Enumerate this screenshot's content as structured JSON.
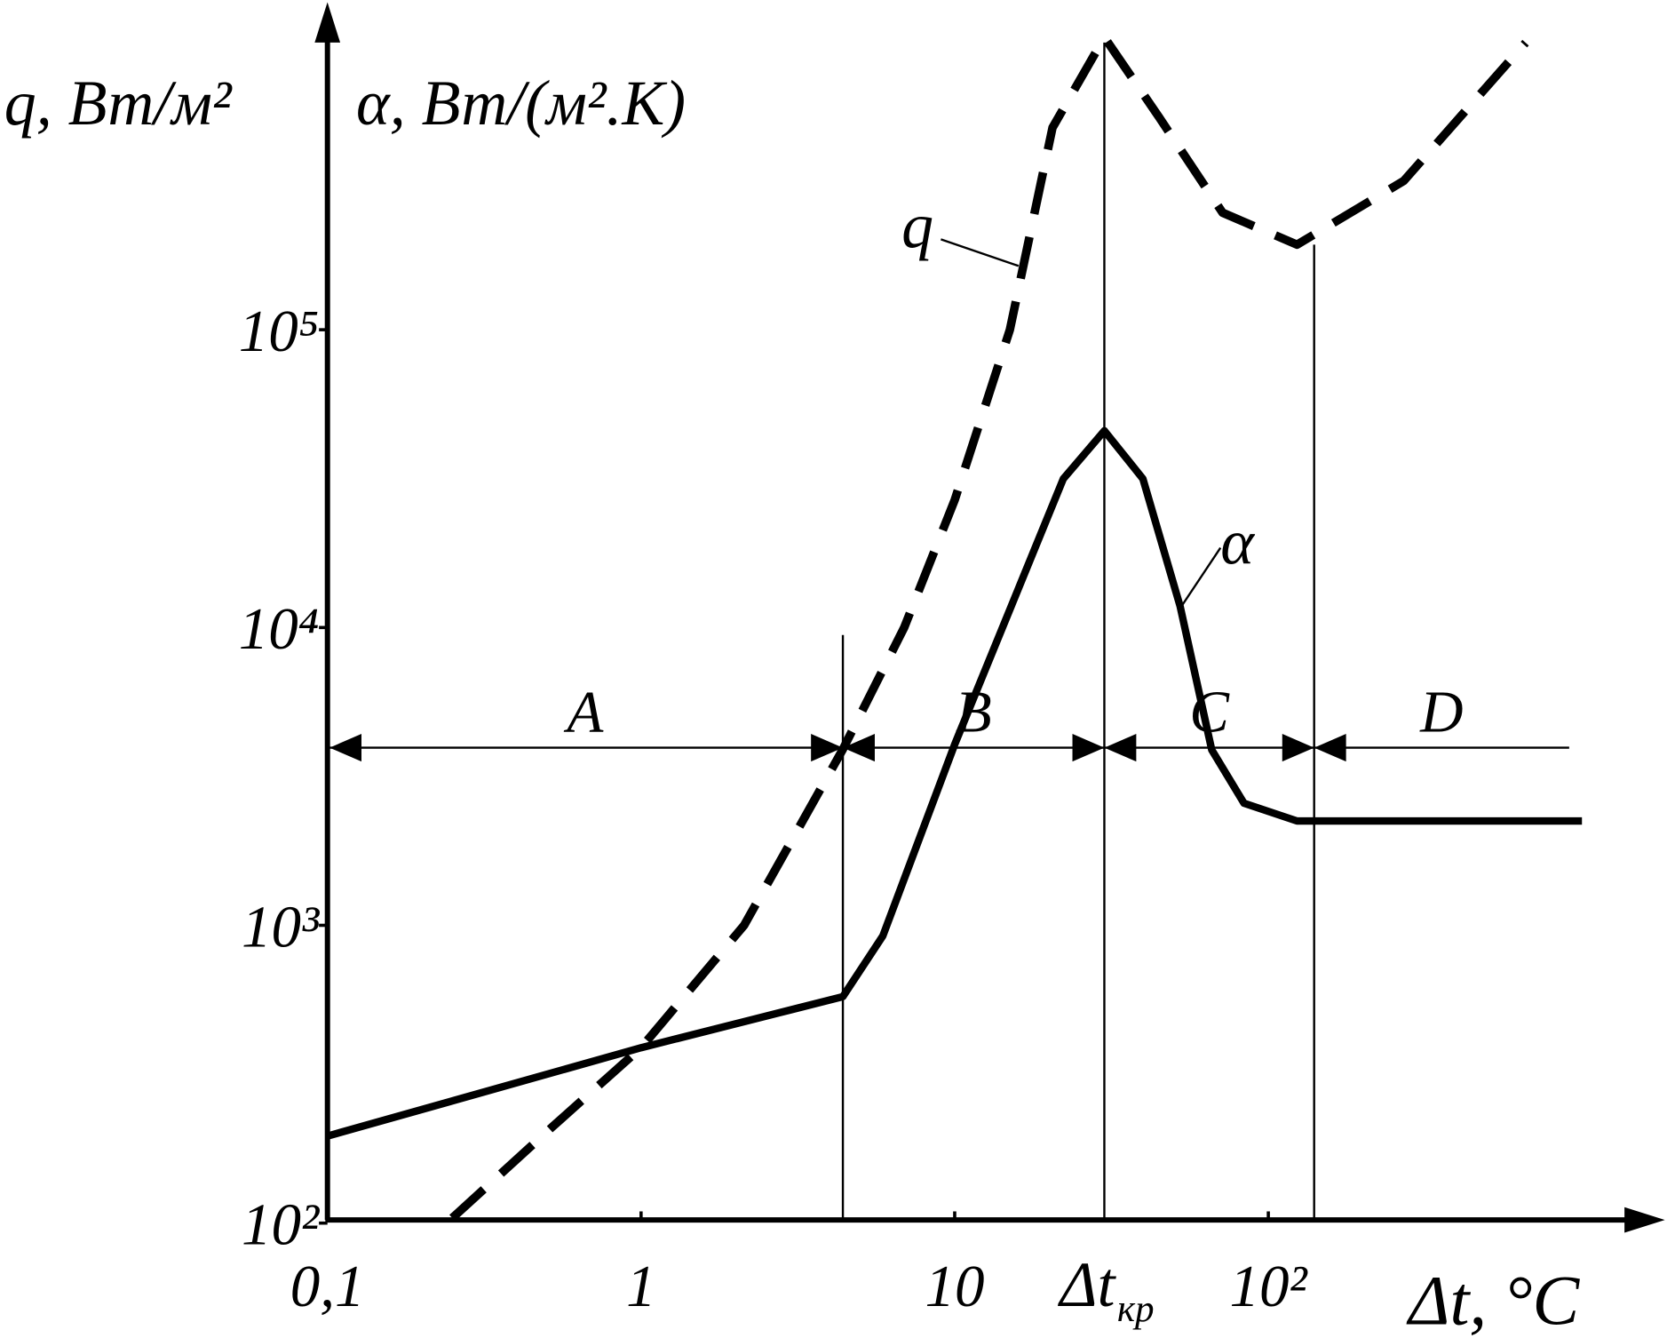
{
  "chart_data": {
    "type": "line",
    "x_title": "Δt, °C",
    "y_title": "q, Вт/м²",
    "y_title_2": "α, Вт/(м².К)",
    "xlog": true,
    "ylog": true,
    "xlim": [
      0.1,
      1000
    ],
    "ylim": [
      100,
      1000000
    ],
    "xticks": [
      {
        "value": 0.1,
        "label": "0,1"
      },
      1,
      10,
      {
        "value": 100,
        "label": "10²"
      }
    ],
    "yticks": [
      {
        "value": 100,
        "label": "10²"
      },
      {
        "value": 1000,
        "label": "10³"
      },
      {
        "value": 10000,
        "label": "10⁴"
      },
      {
        "value": 100000,
        "label": "10⁵"
      }
    ],
    "markers": [
      4.4,
      30,
      140
    ],
    "critical_label": {
      "value": 30,
      "label": "Δt",
      "sub": "кр"
    },
    "regions": [
      "A",
      "B",
      "C",
      "D"
    ],
    "series": [
      {
        "name": "q",
        "color": "#000000",
        "dashed": true,
        "x": [
          0.25,
          0.52,
          1,
          2.13,
          4.4,
          6.9,
          10,
          15,
          20.5,
          30,
          44.8,
          71.5,
          123.5,
          270,
          661
        ],
        "values": [
          104,
          210,
          388,
          1000,
          3900,
          10000,
          26800,
          100000,
          477000,
          960000,
          518000,
          247000,
          193000,
          316000,
          920000
        ]
      },
      {
        "name": "α",
        "color": "#000000",
        "dashed": false,
        "x": [
          0.1,
          1,
          4.4,
          5.9,
          10,
          22.2,
          30,
          39.8,
          52.3,
          66,
          83.6,
          123.5,
          1000
        ],
        "values": [
          196,
          388,
          576,
          921,
          4050,
          31600,
          45800,
          31600,
          11800,
          3880,
          2570,
          2240,
          2240
        ]
      }
    ]
  }
}
